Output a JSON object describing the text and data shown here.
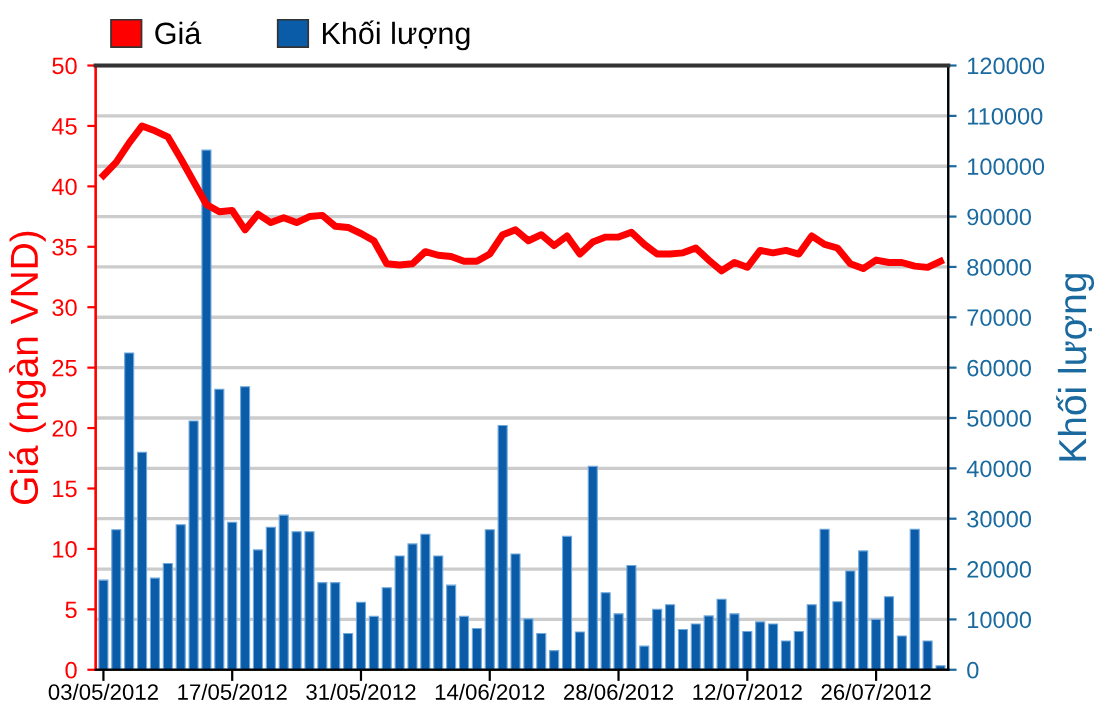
{
  "chart_data": {
    "type": "bar",
    "ylabel": "Giá (ngàn VND)",
    "y2label": "Khối lượng",
    "categories": [
      "03/05/2012",
      null,
      null,
      null,
      null,
      null,
      null,
      null,
      null,
      null,
      "17/05/2012",
      null,
      null,
      null,
      null,
      null,
      null,
      null,
      null,
      null,
      "31/05/2012",
      null,
      null,
      null,
      null,
      null,
      null,
      null,
      null,
      null,
      "14/06/2012",
      null,
      null,
      null,
      null,
      null,
      null,
      null,
      null,
      null,
      "28/06/2012",
      null,
      null,
      null,
      null,
      null,
      null,
      null,
      null,
      null,
      "12/07/2012",
      null,
      null,
      null,
      null,
      null,
      null,
      null,
      null,
      null,
      "26/07/2012",
      null,
      null,
      null,
      null,
      null
    ],
    "series": [
      {
        "name": "Giá",
        "type": "line",
        "axis": "y",
        "color": "#ff0000",
        "values": [
          40.9,
          42.0,
          43.6,
          45.0,
          44.6,
          44.1,
          42.3,
          40.4,
          38.5,
          37.9,
          38.0,
          36.4,
          37.7,
          37.0,
          37.4,
          37.0,
          37.5,
          37.6,
          36.7,
          36.6,
          36.1,
          35.5,
          33.6,
          33.5,
          33.6,
          34.6,
          34.3,
          34.2,
          33.8,
          33.8,
          34.4,
          36.0,
          36.4,
          35.5,
          36.0,
          35.1,
          35.9,
          34.4,
          35.4,
          35.8,
          35.8,
          36.2,
          35.2,
          34.4,
          34.4,
          34.5,
          34.9,
          33.9,
          33.0,
          33.7,
          33.3,
          34.7,
          34.5,
          34.7,
          34.4,
          35.9,
          35.2,
          34.9,
          33.6,
          33.2,
          33.9,
          33.7,
          33.7,
          33.4,
          33.3,
          33.8
        ]
      },
      {
        "name": "Khối lượng",
        "axis": "y2",
        "color": "#0a5ca8",
        "values": [
          17800,
          27800,
          62900,
          43200,
          18200,
          21100,
          28800,
          49400,
          103200,
          55700,
          29300,
          56200,
          23800,
          28300,
          30700,
          27400,
          27400,
          17300,
          17300,
          7200,
          13400,
          10600,
          16300,
          22600,
          25000,
          26900,
          22600,
          16800,
          10600,
          8200,
          27800,
          48500,
          23000,
          10100,
          7200,
          3800,
          26500,
          7500,
          40400,
          15300,
          11100,
          20700,
          4700,
          12000,
          12900,
          8000,
          9100,
          10700,
          14000,
          11100,
          7600,
          9500,
          9100,
          5700,
          7600,
          12900,
          27900,
          13500,
          19600,
          23600,
          10000,
          14500,
          6700,
          27900,
          5700,
          800
        ]
      }
    ],
    "ylim": [
      0,
      50
    ],
    "yticks": [
      0,
      5,
      10,
      15,
      20,
      25,
      30,
      35,
      40,
      45,
      50
    ],
    "y2lim": [
      0,
      120000
    ],
    "y2ticks": [
      0,
      10000,
      20000,
      30000,
      40000,
      50000,
      60000,
      70000,
      80000,
      90000,
      100000,
      110000,
      120000
    ],
    "grid": "y",
    "legend": "top left",
    "marker": "none",
    "line_style": "solid"
  }
}
